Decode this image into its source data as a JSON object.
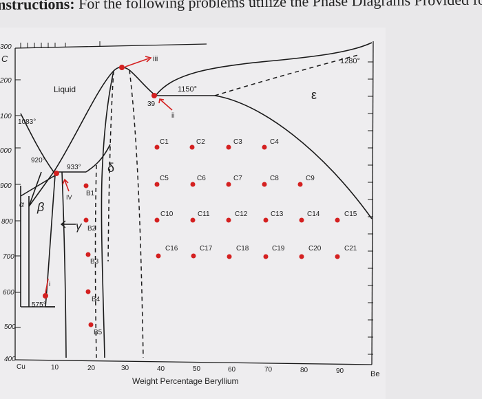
{
  "instruction": {
    "bold": "nstructions:",
    "rest": " For the following problems utilize the Phase Diagrams Provided for y"
  },
  "diagram": {
    "xlabel": "Weight Percentage Beryllium",
    "x_ticks": [
      "Cu",
      "10",
      "20",
      "30",
      "40",
      "50",
      "60",
      "70",
      "80",
      "90",
      "Be"
    ],
    "y_ticks": [
      "400",
      "500",
      "600",
      "700",
      "800",
      "900",
      "000",
      "100",
      "200",
      "C",
      "300"
    ],
    "temperatures": {
      "t1280": "1280°",
      "t1150": "1150°",
      "t1083": "1083°",
      "t933": "933°",
      "t920": "920°",
      "t575": "575°"
    },
    "phases": {
      "liquid": "Liquid",
      "epsilon": "ε",
      "delta": "δ",
      "beta": "β",
      "alpha": "α",
      "gamma": "γ"
    },
    "markers": {
      "iii": "iii",
      "ii": "ii",
      "i": "i",
      "iv": "IV",
      "n39": "39"
    },
    "points": {
      "B1": "B1",
      "B2": "B2",
      "B3": "B3",
      "B4": "B4",
      "B5": "B5",
      "C1": "C1",
      "C2": "C2",
      "C3": "C3",
      "C4": "C4",
      "C5": "C5",
      "C6": "C6",
      "C7": "C7",
      "C8": "C8",
      "C9": "C9",
      "C10": "C10",
      "C11": "C11",
      "C12": "C12",
      "C13": "C13",
      "C14": "C14",
      "C15": "C15",
      "C16": "C16",
      "C17": "C17",
      "C18": "C18",
      "C19": "C19",
      "C20": "C20",
      "C21": "C21"
    },
    "colors": {
      "point": "#d42020",
      "line": "#1a1a1a",
      "paper": "#eeedef"
    }
  }
}
